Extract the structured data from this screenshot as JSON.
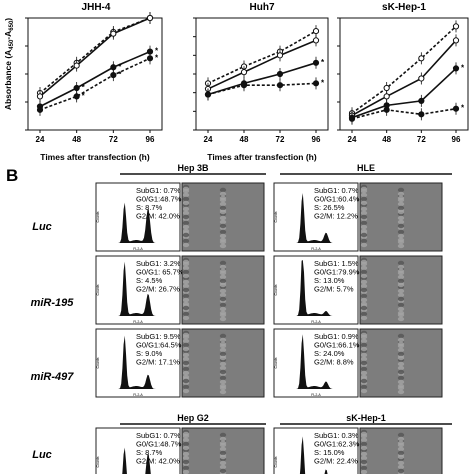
{
  "panel_b_label": "B",
  "chart_data": [
    {
      "type": "line",
      "title": "JHH-4",
      "xlabel": "Times after transfection (h)",
      "ylabel": "Absorbance (A450-A650)",
      "ylabel_main": "Absorbance (A",
      "ylabel_sub1": "450",
      "ylabel_mid": "-A",
      "ylabel_sub2": "650",
      "ylabel_end": ")",
      "x": [
        "24",
        "48",
        "72",
        "96"
      ],
      "ylim": [
        0,
        2.0
      ],
      "yticks": [
        "0",
        "0.5",
        "1",
        "1.5",
        "2"
      ],
      "series": [
        {
          "style": "open-dashed",
          "values": [
            0.66,
            1.2,
            1.75,
            2.0
          ]
        },
        {
          "style": "open-solid",
          "values": [
            0.6,
            1.15,
            1.72,
            2.0
          ]
        },
        {
          "style": "filled-solid",
          "values": [
            0.42,
            0.75,
            1.12,
            1.4
          ],
          "marks": [
            "",
            "*",
            "*",
            "*"
          ]
        },
        {
          "style": "filled-dashed",
          "values": [
            0.36,
            0.6,
            0.98,
            1.28
          ],
          "marks": [
            "",
            "*",
            "*",
            "*"
          ]
        }
      ]
    },
    {
      "type": "line",
      "title": "Huh7",
      "xlabel": "Times after transfection (h)",
      "x": [
        "24",
        "48",
        "72",
        "96"
      ],
      "ylim": [
        0,
        0.6
      ],
      "yticks": [
        "0",
        "0.1",
        "0.2",
        "0.3",
        "0.4",
        "0.5",
        "0.6"
      ],
      "series": [
        {
          "style": "open-dashed",
          "values": [
            0.25,
            0.34,
            0.42,
            0.53
          ]
        },
        {
          "style": "open-solid",
          "values": [
            0.22,
            0.31,
            0.4,
            0.48
          ]
        },
        {
          "style": "filled-solid",
          "values": [
            0.19,
            0.25,
            0.3,
            0.36
          ],
          "marks": [
            "",
            "",
            "",
            "*"
          ]
        },
        {
          "style": "filled-dashed",
          "values": [
            0.19,
            0.24,
            0.24,
            0.25
          ],
          "marks": [
            "",
            "",
            "",
            "*"
          ]
        }
      ]
    },
    {
      "type": "line",
      "title": "sK-Hep-1",
      "xlabel": "",
      "x": [
        "24",
        "48",
        "72",
        "96"
      ],
      "ylim": [
        0,
        2.0
      ],
      "yticks": [
        "0",
        "0.5",
        "1",
        "1.5",
        "2"
      ],
      "series": [
        {
          "style": "open-dashed",
          "values": [
            0.3,
            0.75,
            1.28,
            1.85
          ]
        },
        {
          "style": "open-solid",
          "values": [
            0.26,
            0.6,
            0.92,
            1.6
          ]
        },
        {
          "style": "filled-solid",
          "values": [
            0.22,
            0.44,
            0.52,
            1.1
          ],
          "marks": [
            "",
            "",
            "",
            "*"
          ]
        },
        {
          "style": "filled-dashed",
          "values": [
            0.2,
            0.36,
            0.28,
            0.38
          ],
          "marks": [
            "",
            "",
            "",
            "*"
          ]
        }
      ]
    }
  ],
  "flow": {
    "cell_lines_top": [
      "Hep 3B",
      "HLE"
    ],
    "cell_lines_bottom": [
      "Hep G2",
      "sK-Hep-1"
    ],
    "rows": [
      "Luc",
      "miR-195",
      "miR-497"
    ],
    "rows_bottom": [
      "Luc"
    ],
    "x_axis_label": "FL2-A",
    "y_axis_label": "Counts",
    "grid": [
      [
        {
          "subg1": "SubG1: 0.7%",
          "g0g1": "G0/G1:48.7%",
          "s": "S:       8.7%",
          "g2m": "G2/M: 42.0%"
        },
        {
          "subg1": "SubG1: 0.7%",
          "g0g1": "G0/G1:60.4%",
          "s": "S:      26.5%",
          "g2m": "G2/M: 12.2%"
        }
      ],
      [
        {
          "subg1": "SubG1: 3.2%",
          "g0g1": "G0/G1: 65.7%",
          "s": "S:       4.5%",
          "g2m": "G2/M: 26.7%"
        },
        {
          "subg1": "SubG1: 1.5%",
          "g0g1": "G0/G1:79.9%",
          "s": "S:      13.0%",
          "g2m": "G2/M:   5.7%"
        }
      ],
      [
        {
          "subg1": "SubG1: 9.5%",
          "g0g1": "G0/G1:64.5%",
          "s": "S:       9.0%",
          "g2m": "G2/M: 17.1%"
        },
        {
          "subg1": "SubG1: 0.9%",
          "g0g1": "G0/G1:66.1%",
          "s": "S:      24.0%",
          "g2m": "G2/M:   8.8%"
        }
      ]
    ],
    "grid_bottom": [
      [
        {
          "subg1": "SubG1: 0.7%",
          "g0g1": "G0/G1:48.7%",
          "s": "S:       8.7%",
          "g2m": "G2/M: 42.0%"
        },
        {
          "subg1": "SubG1: 0.3%",
          "g0g1": "G0/G1:62.3%",
          "s": "S:      15.0%",
          "g2m": "G2/M: 22.4%"
        }
      ]
    ]
  }
}
